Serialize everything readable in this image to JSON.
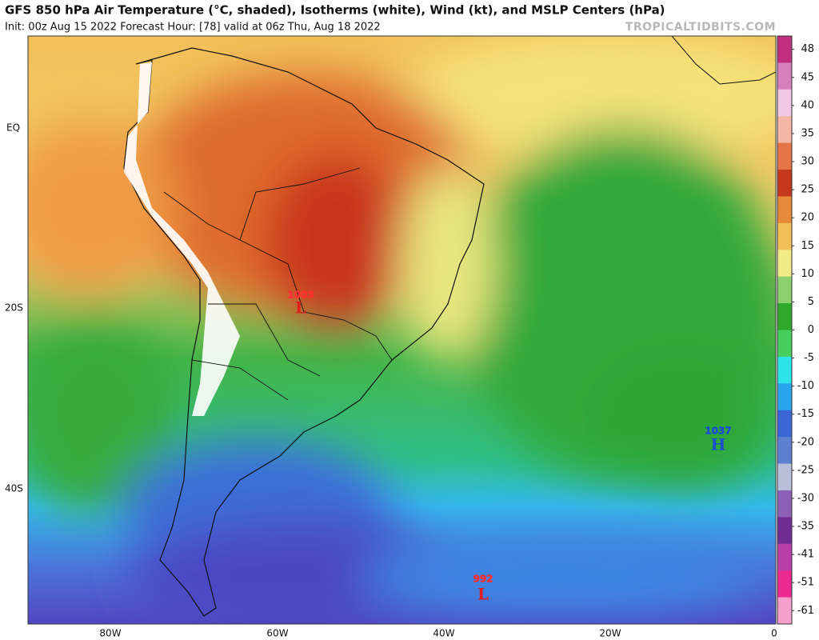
{
  "header": {
    "title": "GFS 850 hPa Air Temperature (°C, shaded), Isotherms (white), Wind (kt), and MSLP Centers (hPa)",
    "subtitle": "Init: 00z Aug 15 2022   Forecast Hour: [78]   valid at 06z Thu, Aug 18 2022",
    "site": "TROPICALTIDBITS.COM"
  },
  "map": {
    "lat_labels": [
      "EQ",
      "20S",
      "40S"
    ],
    "lon_labels": [
      "80W",
      "60W",
      "40W",
      "20W",
      "0"
    ],
    "centers": [
      {
        "value": 1003,
        "letter": "L"
      },
      {
        "value": 1037,
        "letter": "H"
      },
      {
        "value": 992,
        "letter": "L"
      }
    ]
  },
  "colorbar": {
    "ticks": [
      48,
      45,
      40,
      35,
      30,
      25,
      20,
      15,
      10,
      5,
      0,
      -5,
      -10,
      -15,
      -20,
      -25,
      -30,
      -35,
      -41,
      -51,
      -61
    ],
    "colors": [
      "#c0307f",
      "#d77fbb",
      "#efc9e6",
      "#f4b7a3",
      "#e67447",
      "#c6381c",
      "#e68a3a",
      "#f2c055",
      "#f2ec86",
      "#8bd06d",
      "#2ea92c",
      "#47cf5e",
      "#2ee3ea",
      "#29a4ee",
      "#3b67d6",
      "#5d81d0",
      "#b7bfd9",
      "#8a5fb5",
      "#6f2d93",
      "#bb3fa9",
      "#eb2b91",
      "#f5a0cc"
    ]
  }
}
